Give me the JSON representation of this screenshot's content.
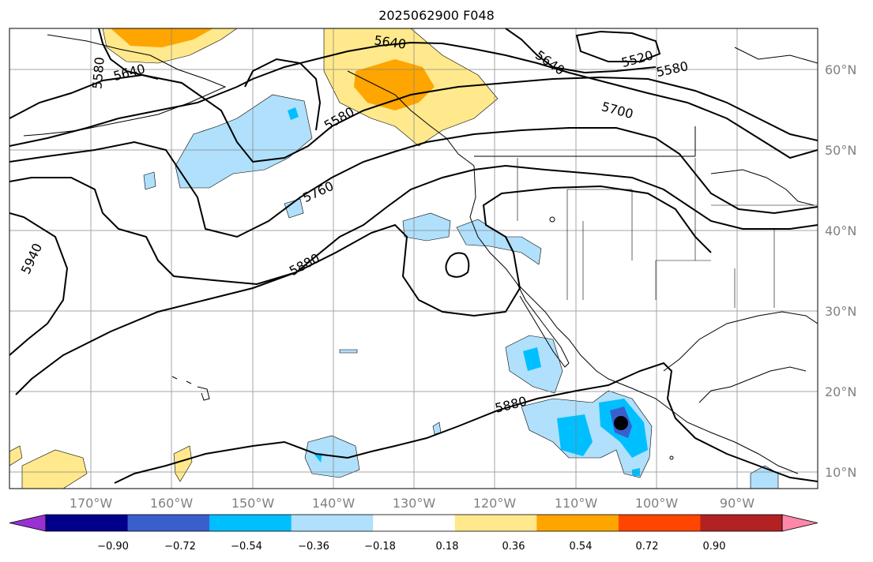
{
  "title": "2025062900 F048",
  "map": {
    "lon_range": [
      -180,
      -80
    ],
    "lat_range": [
      8,
      65
    ],
    "lon_ticks": [
      {
        "label": "170°W",
        "lon": -170
      },
      {
        "label": "160°W",
        "lon": -160
      },
      {
        "label": "150°W",
        "lon": -150
      },
      {
        "label": "140°W",
        "lon": -140
      },
      {
        "label": "130°W",
        "lon": -130
      },
      {
        "label": "120°W",
        "lon": -120
      },
      {
        "label": "110°W",
        "lon": -110
      },
      {
        "label": "100°W",
        "lon": -100
      },
      {
        "label": "90°W",
        "lon": -90
      }
    ],
    "lat_ticks": [
      {
        "label": "60°N",
        "lat": 60
      },
      {
        "label": "50°N",
        "lat": 50
      },
      {
        "label": "40°N",
        "lat": 40
      },
      {
        "label": "30°N",
        "lat": 30
      },
      {
        "label": "20°N",
        "lat": 20
      },
      {
        "label": "10°N",
        "lat": 10
      }
    ],
    "contour_labels": [
      "5580",
      "5640",
      "5640",
      "5640",
      "5520",
      "5580",
      "5700",
      "5580",
      "5760",
      "5940",
      "5880",
      "5880"
    ]
  },
  "colorbar": {
    "ticks": [
      "−0.90",
      "−0.72",
      "−0.54",
      "−0.36",
      "−0.18",
      "0.18",
      "0.36",
      "0.54",
      "0.72",
      "0.90"
    ],
    "colors": [
      "#9b30d0",
      "#00008b",
      "#3a5fcd",
      "#00bfff",
      "#b0e0fb",
      "#ffffff",
      "#ffe98c",
      "#ffa500",
      "#ff4500",
      "#b22222",
      "#ff88aa"
    ]
  },
  "colors": {
    "grid": "#808080",
    "coast": "#000000",
    "contour": "#000000"
  }
}
